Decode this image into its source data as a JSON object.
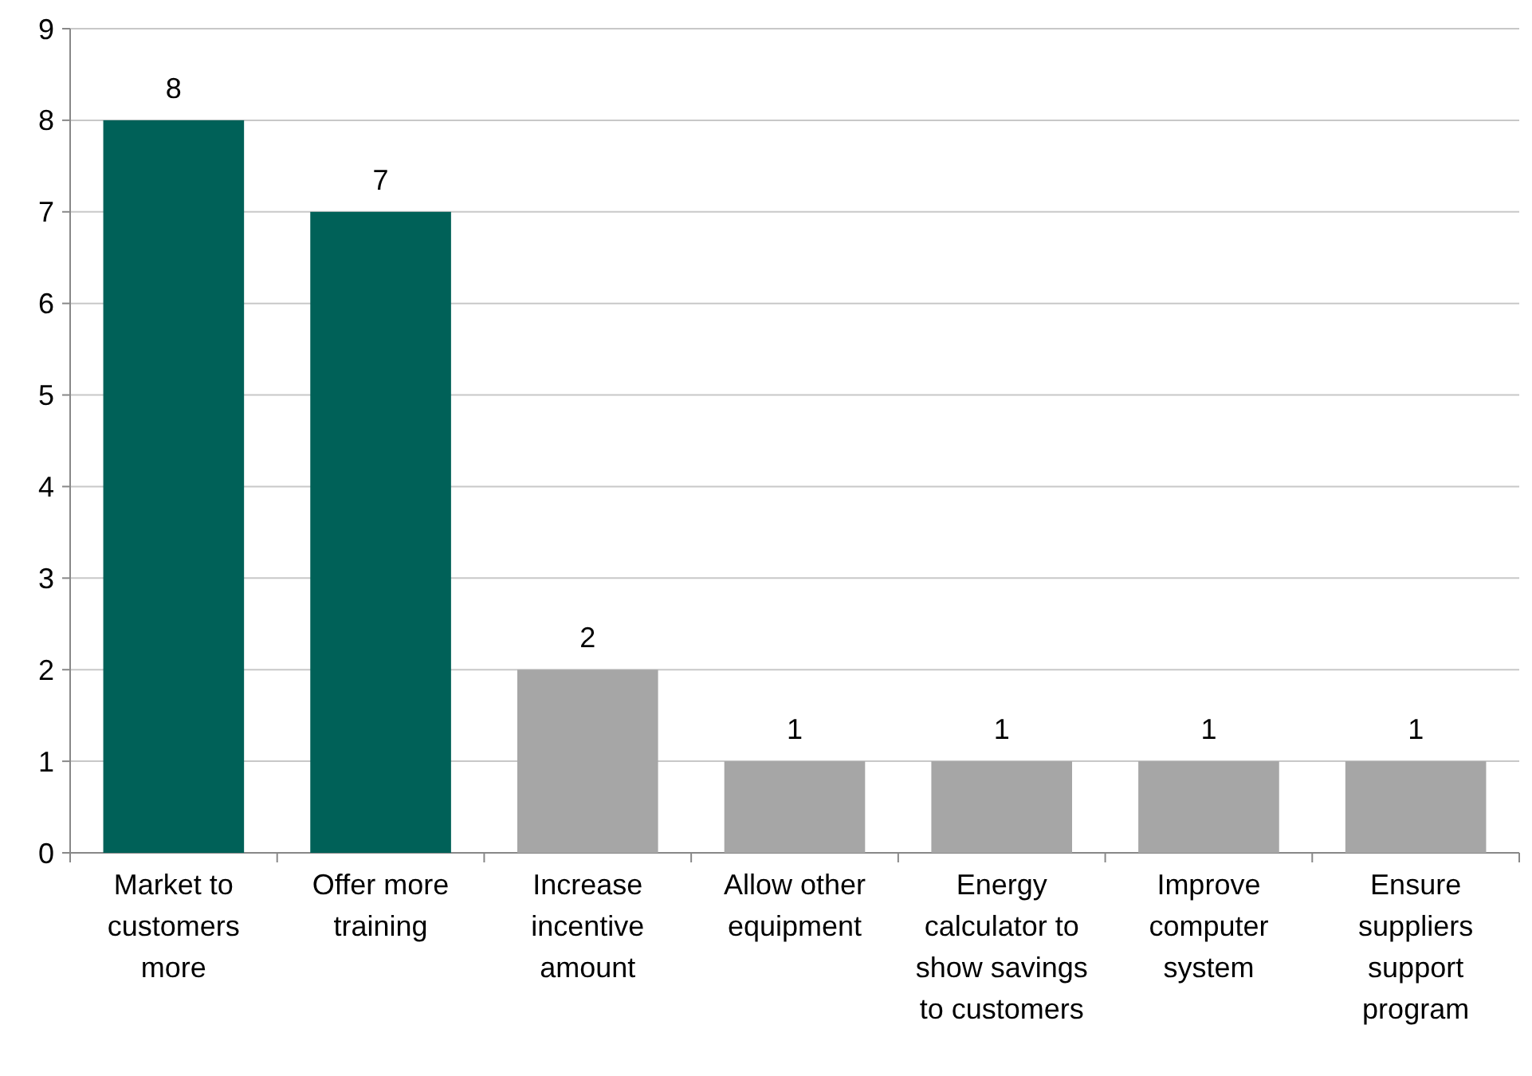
{
  "chart_data": {
    "type": "bar",
    "categories": [
      "Market to customers more",
      "Offer more training",
      "Increase incentive amount",
      "Allow other equipment",
      "Energy calculator to show savings to customers",
      "Improve computer system",
      "Ensure suppliers support program"
    ],
    "values": [
      8,
      7,
      2,
      1,
      1,
      1,
      1
    ],
    "colors": [
      "#006158",
      "#006158",
      "#a6a6a6",
      "#a6a6a6",
      "#a6a6a6",
      "#a6a6a6",
      "#a6a6a6"
    ],
    "ylim": [
      0,
      9
    ],
    "yticks": [
      0,
      1,
      2,
      3,
      4,
      5,
      6,
      7,
      8,
      9
    ],
    "grid": "y",
    "data_labels": true
  }
}
